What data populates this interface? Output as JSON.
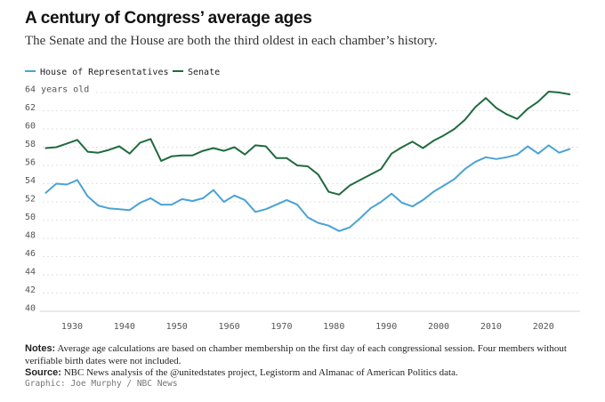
{
  "title": "A century of Congress’ average ages",
  "subtitle": "The Senate and the House are both the third oldest in each chamber’s history.",
  "notes_label": "Notes:",
  "notes_text": "Average age calculations are based on chamber membership on the first day of each congressional session. Four members without verifiable birth dates were not included.",
  "source_label": "Source:",
  "source_text": "NBC News analysis of the @unitedstates project, Legistorm and Almanac of American Politics data.",
  "credit": "Graphic: Joe Murphy / NBC News",
  "chart_data": {
    "type": "line",
    "ylabel": "64 years old",
    "ylim": [
      40,
      64
    ],
    "xlim": [
      1921,
      2027
    ],
    "y_ticks": [
      40,
      42,
      44,
      46,
      48,
      50,
      52,
      54,
      56,
      58,
      60,
      62,
      64
    ],
    "y_tick_labels": [
      "40",
      "42",
      "44",
      "46",
      "48",
      "50",
      "52",
      "54",
      "56",
      "58",
      "60",
      "62",
      "64 years old"
    ],
    "x_ticks": [
      1930,
      1940,
      1950,
      1960,
      1970,
      1980,
      1990,
      2000,
      2010,
      2020
    ],
    "grid": true,
    "legend_position": "top-left",
    "x": [
      1925,
      1927,
      1929,
      1931,
      1933,
      1935,
      1937,
      1939,
      1941,
      1943,
      1945,
      1947,
      1949,
      1951,
      1953,
      1955,
      1957,
      1959,
      1961,
      1963,
      1965,
      1967,
      1969,
      1971,
      1973,
      1975,
      1977,
      1979,
      1981,
      1983,
      1985,
      1987,
      1989,
      1991,
      1993,
      1995,
      1997,
      1999,
      2001,
      2003,
      2005,
      2007,
      2009,
      2011,
      2013,
      2015,
      2017,
      2019,
      2021,
      2023,
      2025
    ],
    "series": [
      {
        "name": "House of Representatives",
        "color": "#4aa3d4",
        "values": [
          53.0,
          54.0,
          53.9,
          54.4,
          52.6,
          51.6,
          51.3,
          51.2,
          51.1,
          51.9,
          52.4,
          51.7,
          51.7,
          52.3,
          52.1,
          52.4,
          53.3,
          52.0,
          52.7,
          52.2,
          50.9,
          51.2,
          51.7,
          52.2,
          51.7,
          50.3,
          49.7,
          49.4,
          48.8,
          49.2,
          50.2,
          51.3,
          52.0,
          52.9,
          51.9,
          51.5,
          52.2,
          53.1,
          53.8,
          54.5,
          55.6,
          56.4,
          56.9,
          56.7,
          56.9,
          57.2,
          58.1,
          57.3,
          58.2,
          57.4,
          57.8
        ]
      },
      {
        "name": "Senate",
        "color": "#1f6b3f",
        "values": [
          57.9,
          58.0,
          58.4,
          58.8,
          57.5,
          57.4,
          57.7,
          58.1,
          57.3,
          58.5,
          58.9,
          56.5,
          57.0,
          57.1,
          57.1,
          57.6,
          57.9,
          57.6,
          58.0,
          57.2,
          58.2,
          58.1,
          56.8,
          56.8,
          56.0,
          55.9,
          55.0,
          53.1,
          52.8,
          53.8,
          54.4,
          55.0,
          55.6,
          57.3,
          58.0,
          58.6,
          57.9,
          58.7,
          59.3,
          60.0,
          61.0,
          62.4,
          63.4,
          62.3,
          61.6,
          61.1,
          62.2,
          63.0,
          64.1,
          64.0,
          63.8
        ]
      }
    ]
  }
}
